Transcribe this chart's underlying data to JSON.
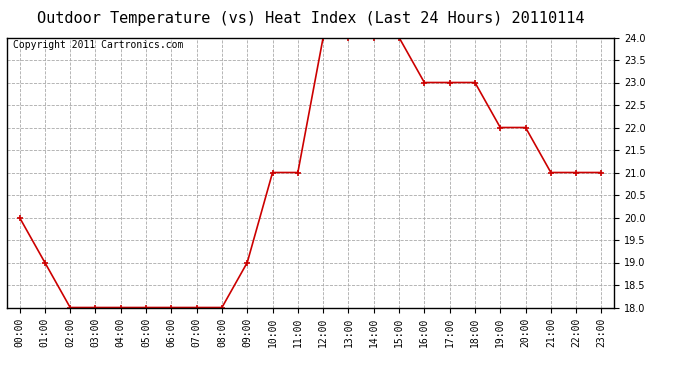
{
  "title": "Outdoor Temperature (vs) Heat Index (Last 24 Hours) 20110114",
  "copyright_text": "Copyright 2011 Cartronics.com",
  "x_labels": [
    "00:00",
    "01:00",
    "02:00",
    "03:00",
    "04:00",
    "05:00",
    "06:00",
    "07:00",
    "08:00",
    "09:00",
    "10:00",
    "11:00",
    "12:00",
    "13:00",
    "14:00",
    "15:00",
    "16:00",
    "17:00",
    "18:00",
    "19:00",
    "20:00",
    "21:00",
    "22:00",
    "23:00"
  ],
  "y_values": [
    20.0,
    19.0,
    18.0,
    18.0,
    18.0,
    18.0,
    18.0,
    18.0,
    18.0,
    19.0,
    21.0,
    21.0,
    24.0,
    24.0,
    24.0,
    24.0,
    23.0,
    23.0,
    23.0,
    22.0,
    22.0,
    21.0,
    21.0,
    21.0
  ],
  "ylim": [
    18.0,
    24.0
  ],
  "ytick_step": 0.5,
  "line_color": "#cc0000",
  "marker": "+",
  "marker_size": 5,
  "marker_color": "#cc0000",
  "bg_color": "#ffffff",
  "grid_color": "#aaaaaa",
  "title_fontsize": 11,
  "copyright_fontsize": 7,
  "tick_fontsize": 7
}
